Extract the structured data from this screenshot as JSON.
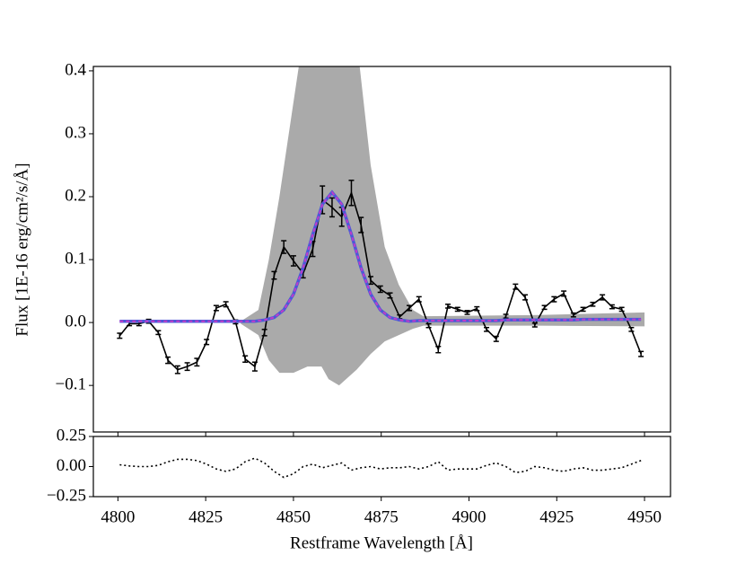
{
  "chart_data": [
    {
      "type": "line",
      "ylabel": "Flux [1E-16 erg/cm²/s/Å]",
      "xlim": [
        4793,
        4957.4
      ],
      "ylim": [
        -0.174,
        0.407
      ],
      "xticks": [
        4800,
        4825,
        4850,
        4875,
        4900,
        4925,
        4950
      ],
      "yticks": [
        {
          "value": -0.1,
          "label": "−0.1"
        },
        {
          "value": 0,
          "label": "0.0"
        },
        0.1,
        0.2,
        0.3,
        0.4
      ],
      "x": [
        4800.5,
        4803.25,
        4806,
        4808.75,
        4811.5,
        4814.25,
        4817,
        4819.75,
        4822.5,
        4825.25,
        4828,
        4830.75,
        4833.5,
        4836.25,
        4839,
        4841.75,
        4844.5,
        4847.25,
        4850,
        4852.75,
        4855.5,
        4858.25,
        4861,
        4863.75,
        4866.5,
        4869.25,
        4872,
        4874.75,
        4877.5,
        4880.25,
        4883,
        4885.75,
        4888.5,
        4891.25,
        4894,
        4896.75,
        4899.5,
        4902.25,
        4905,
        4907.75,
        4910.5,
        4913.25,
        4916,
        4918.75,
        4921.5,
        4924.25,
        4927,
        4929.75,
        4932.5,
        4935.25,
        4938,
        4940.75,
        4943.5,
        4946.25,
        4949
      ],
      "band": {
        "color": "#aaaaaa",
        "x": [
          4835,
          4840,
          4843,
          4846,
          4850,
          4854,
          4858,
          4860,
          4863,
          4866,
          4868,
          4872,
          4876,
          4880,
          4884,
          4887,
          4920,
          4950
        ],
        "upper": [
          0.002,
          0.02,
          0.1,
          0.2,
          0.35,
          0.5,
          0.6,
          0.62,
          0.62,
          0.55,
          0.45,
          0.25,
          0.12,
          0.06,
          0.02,
          0.01,
          0.012,
          0.016
        ],
        "lower": [
          -0.002,
          -0.02,
          -0.06,
          -0.08,
          -0.08,
          -0.07,
          -0.07,
          -0.09,
          -0.1,
          -0.085,
          -0.075,
          -0.05,
          -0.03,
          -0.02,
          -0.01,
          -0.005,
          -0.005,
          -0.006
        ]
      },
      "series": [
        {
          "color": "#000000",
          "values": [
            -0.021,
            -0.002,
            -0.002,
            0.002,
            -0.016,
            -0.06,
            -0.075,
            -0.07,
            -0.063,
            -0.031,
            0.023,
            0.029,
            0.001,
            -0.058,
            -0.07,
            -0.016,
            0.075,
            0.12,
            0.098,
            0.078,
            0.117,
            0.195,
            0.183,
            0.168,
            0.206,
            0.155,
            0.067,
            0.053,
            0.043,
            0.009,
            0.023,
            0.037,
            -0.005,
            -0.043,
            0.026,
            0.021,
            0.016,
            0.022,
            -0.011,
            -0.026,
            0.01,
            0.057,
            0.04,
            -0.004,
            0.024,
            0.037,
            0.046,
            0.012,
            0.021,
            0.029,
            0.04,
            0.025,
            0.021,
            -0.011,
            -0.05
          ],
          "errors": [
            0.004,
            0.003,
            0.003,
            0.003,
            0.003,
            0.005,
            0.006,
            0.006,
            0.006,
            0.004,
            0.004,
            0.004,
            0.003,
            0.005,
            0.007,
            0.005,
            0.006,
            0.01,
            0.008,
            0.007,
            0.012,
            0.022,
            0.015,
            0.015,
            0.02,
            0.012,
            0.006,
            0.005,
            0.004,
            0.003,
            0.004,
            0.004,
            0.003,
            0.005,
            0.003,
            0.003,
            0.003,
            0.003,
            0.003,
            0.004,
            0.003,
            0.004,
            0.004,
            0.003,
            0.003,
            0.004,
            0.004,
            0.003,
            0.003,
            0.003,
            0.004,
            0.003,
            0.003,
            0.003,
            0.004
          ]
        },
        {
          "color": "#4a5ad8",
          "dash_color": "#c03cc8",
          "values": [
            0.002,
            0.002,
            0.002,
            0.002,
            0.002,
            0.002,
            0.002,
            0.002,
            0.002,
            0.002,
            0.002,
            0.002,
            0.002,
            0.002,
            0.002,
            0.004,
            0.008,
            0.02,
            0.045,
            0.087,
            0.14,
            0.188,
            0.207,
            0.188,
            0.14,
            0.087,
            0.045,
            0.02,
            0.008,
            0.004,
            0.002,
            0.003,
            0.003,
            0.003,
            0.003,
            0.003,
            0.003,
            0.003,
            0.003,
            0.003,
            0.004,
            0.004,
            0.004,
            0.004,
            0.004,
            0.004,
            0.004,
            0.004,
            0.005,
            0.005,
            0.005,
            0.005,
            0.005,
            0.005,
            0.005
          ]
        }
      ]
    },
    {
      "type": "line",
      "xlabel": "Restframe Wavelength [Å]",
      "xlim": [
        4793,
        4957.4
      ],
      "ylim": [
        -0.25,
        0.25
      ],
      "xticks": [
        4800,
        4825,
        4850,
        4875,
        4900,
        4925,
        4950
      ],
      "yticks": [
        {
          "value": -0.25,
          "label": "−0.25"
        },
        {
          "value": 0,
          "label": "0.00"
        },
        0.25
      ],
      "x": [
        4800.5,
        4803.25,
        4806,
        4808.75,
        4811.5,
        4814.25,
        4817,
        4819.75,
        4822.5,
        4825.25,
        4828,
        4830.75,
        4833.5,
        4836.25,
        4839,
        4841.75,
        4844.5,
        4847.25,
        4850,
        4852.75,
        4855.5,
        4858.25,
        4861,
        4863.75,
        4866.5,
        4869.25,
        4872,
        4874.75,
        4877.5,
        4880.25,
        4883,
        4885.75,
        4888.5,
        4891.25,
        4894,
        4896.75,
        4899.5,
        4902.25,
        4905,
        4907.75,
        4910.5,
        4913.25,
        4916,
        4918.75,
        4921.5,
        4924.25,
        4927,
        4929.75,
        4932.5,
        4935.25,
        4938,
        4940.75,
        4943.5,
        4946.25,
        4949
      ],
      "series": [
        {
          "color": "#000000",
          "dotted": true,
          "values": [
            0.015,
            0.005,
            0,
            0,
            0.01,
            0.04,
            0.06,
            0.06,
            0.05,
            0.02,
            -0.02,
            -0.04,
            -0.02,
            0.04,
            0.07,
            0.03,
            -0.04,
            -0.09,
            -0.06,
            0,
            0.02,
            -0.01,
            0.01,
            0.03,
            -0.03,
            -0.01,
            0,
            -0.02,
            -0.01,
            -0.01,
            0,
            -0.02,
            0,
            0.04,
            -0.03,
            -0.02,
            -0.02,
            -0.02,
            0.01,
            0.03,
            0,
            -0.05,
            -0.04,
            0,
            -0.01,
            -0.03,
            -0.04,
            -0.02,
            -0.01,
            -0.03,
            -0.03,
            -0.02,
            -0.01,
            0.02,
            0.05
          ]
        }
      ]
    }
  ]
}
